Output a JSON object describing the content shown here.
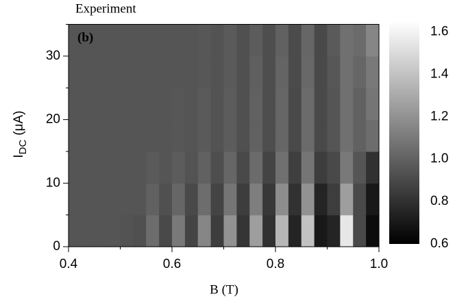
{
  "chart_data": {
    "type": "heatmap",
    "title": "Experiment",
    "panel_label": "(b)",
    "xlabel": "B (T)",
    "ylabel": {
      "main": "I",
      "sub": "DC",
      "unit": "(μA)"
    },
    "x": [
      0.4125,
      0.4375,
      0.4625,
      0.4875,
      0.5125,
      0.5375,
      0.5625,
      0.5875,
      0.6125,
      0.6375,
      0.6625,
      0.6875,
      0.7125,
      0.7375,
      0.7625,
      0.7875,
      0.8125,
      0.8375,
      0.8625,
      0.8875,
      0.9125,
      0.9375,
      0.9625,
      0.9875
    ],
    "y": [
      2.5,
      7.5,
      12.5,
      17.5,
      22.5,
      27.5,
      32.5
    ],
    "z": [
      [
        0.95,
        0.95,
        0.95,
        0.95,
        0.94,
        0.93,
        1.05,
        0.9,
        1.1,
        0.88,
        1.15,
        0.85,
        1.2,
        0.82,
        1.25,
        0.8,
        1.35,
        0.75,
        1.4,
        0.7,
        0.75,
        1.55,
        0.9,
        0.65
      ],
      [
        0.95,
        0.95,
        0.95,
        0.95,
        0.95,
        0.95,
        1.0,
        0.93,
        1.02,
        0.9,
        1.05,
        0.88,
        1.08,
        0.85,
        1.12,
        0.83,
        1.18,
        0.8,
        1.2,
        0.75,
        0.85,
        1.25,
        0.9,
        0.7
      ],
      [
        0.95,
        0.95,
        0.95,
        0.95,
        0.95,
        0.95,
        0.97,
        0.95,
        0.98,
        0.94,
        1.0,
        0.92,
        1.02,
        0.9,
        1.04,
        0.88,
        1.06,
        0.86,
        1.08,
        0.85,
        0.9,
        1.1,
        0.95,
        0.8
      ],
      [
        0.95,
        0.95,
        0.95,
        0.95,
        0.95,
        0.95,
        0.95,
        0.95,
        0.96,
        0.95,
        0.97,
        0.94,
        0.98,
        0.93,
        1.0,
        0.92,
        1.02,
        0.9,
        1.04,
        0.9,
        0.95,
        1.06,
        1.0,
        1.05
      ],
      [
        0.95,
        0.95,
        0.95,
        0.95,
        0.95,
        0.95,
        0.95,
        0.95,
        0.96,
        0.95,
        0.97,
        0.94,
        0.98,
        0.93,
        1.0,
        0.92,
        1.02,
        0.9,
        1.04,
        0.9,
        0.95,
        1.06,
        1.0,
        1.08
      ],
      [
        0.95,
        0.95,
        0.95,
        0.95,
        0.95,
        0.95,
        0.95,
        0.95,
        0.95,
        0.95,
        0.96,
        0.94,
        0.97,
        0.93,
        0.99,
        0.92,
        1.01,
        0.91,
        1.03,
        0.9,
        0.96,
        1.06,
        1.02,
        1.1
      ],
      [
        0.95,
        0.95,
        0.95,
        0.95,
        0.95,
        0.95,
        0.95,
        0.95,
        0.95,
        0.95,
        0.96,
        0.94,
        0.97,
        0.93,
        0.98,
        0.92,
        1.0,
        0.91,
        1.02,
        0.9,
        0.97,
        1.06,
        1.04,
        1.15
      ]
    ],
    "xlim": [
      0.4,
      1.0
    ],
    "ylim": [
      0,
      35
    ],
    "zlim": [
      0.6,
      1.65
    ],
    "xticks": [
      0.4,
      0.6,
      0.8,
      {
        "value": 1,
        "label": "1.0"
      }
    ],
    "xminorticks": [
      0.5,
      0.7,
      0.9
    ],
    "yticks": [
      0,
      10,
      20,
      30
    ],
    "yminorticks": [
      5,
      15,
      25,
      35
    ],
    "colorbar_ticks": [
      0.6,
      0.8,
      {
        "value": 1,
        "label": "1.0"
      },
      1.2,
      1.4,
      1.6
    ],
    "colormap": [
      "#000000",
      "#ffffff"
    ]
  }
}
